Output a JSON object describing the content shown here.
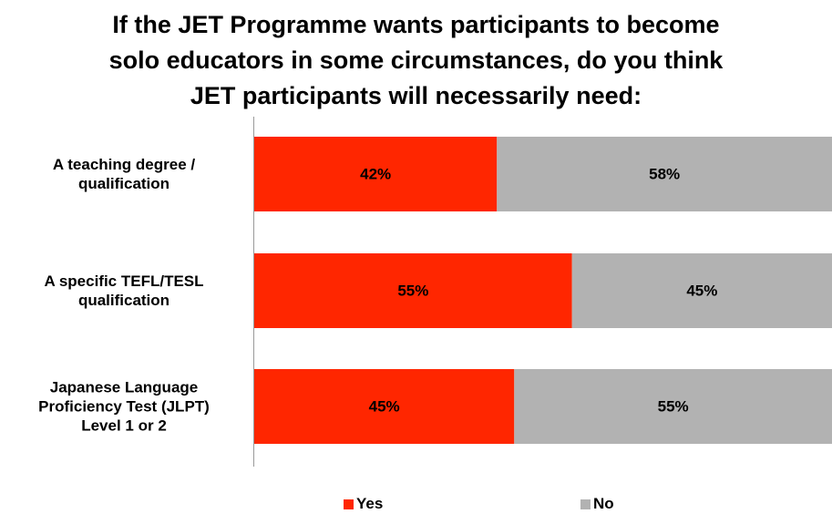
{
  "chart_data": {
    "type": "bar",
    "stacked": true,
    "orientation": "horizontal",
    "percent_stacked": true,
    "title": "If the JET Programme wants participants to become solo educators in some circumstances, do you think JET participants will necessarily need:",
    "title_lines": [
      "If the JET Programme wants participants to become",
      "solo educators in some circumstances, do you think",
      "JET participants will necessarily need:"
    ],
    "categories": [
      [
        "A teaching degree /",
        "qualification"
      ],
      [
        "A specific TEFL/TESL",
        "qualification"
      ],
      [
        "Japanese Language",
        "Proficiency Test (JLPT)",
        "Level 1 or 2"
      ]
    ],
    "series": [
      {
        "name": "Yes",
        "color": "#ff2600",
        "values": [
          42,
          55,
          45
        ],
        "labels": [
          "42%",
          "55%",
          "45%"
        ]
      },
      {
        "name": "No",
        "color": "#b2b2b2",
        "values": [
          58,
          45,
          55
        ],
        "labels": [
          "58%",
          "45%",
          "55%"
        ]
      }
    ],
    "xlim": [
      0,
      100
    ],
    "legend_position": "bottom",
    "grid": false
  }
}
